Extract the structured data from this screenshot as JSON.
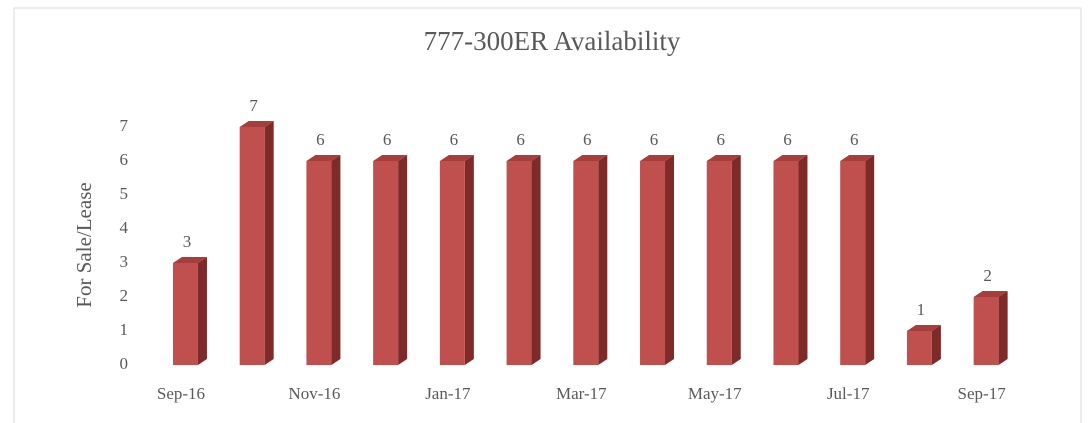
{
  "chart_data": {
    "type": "bar",
    "title": "777-300ER Availability",
    "y_label": "For Sale/Lease",
    "categories": [
      "Sep-16",
      null,
      "Nov-16",
      null,
      "Jan-17",
      null,
      "Mar-17",
      null,
      "May-17",
      null,
      "Jul-17",
      null,
      "Sep-17"
    ],
    "values": [
      3,
      7,
      6,
      6,
      6,
      6,
      6,
      6,
      6,
      6,
      6,
      1,
      2
    ],
    "color": "#c0504d",
    "ylim": [
      0,
      7
    ],
    "yticks": [
      0,
      1,
      2,
      3,
      4,
      5,
      6,
      7
    ],
    "grid": false
  }
}
